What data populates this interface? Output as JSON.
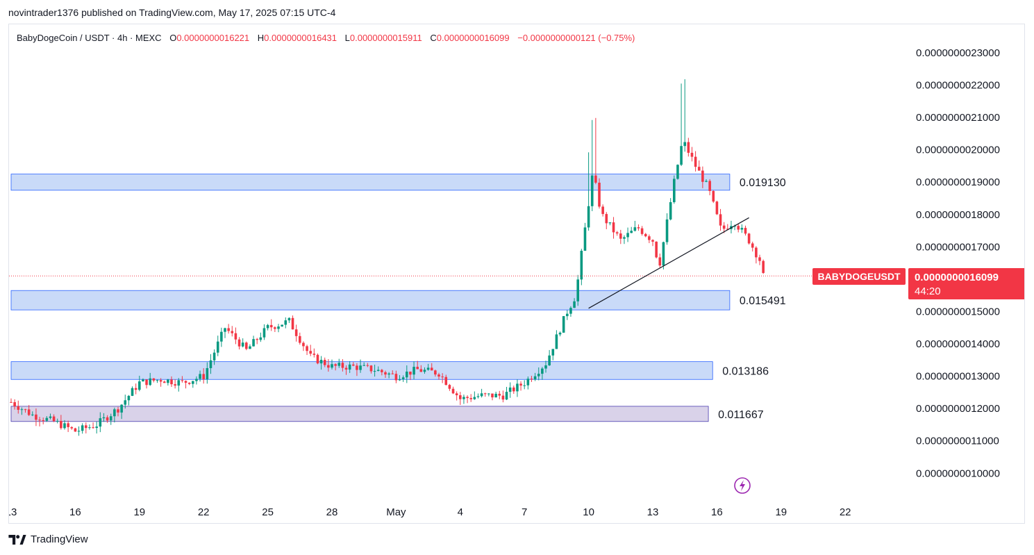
{
  "header": {
    "published_by": "novintrader1376 published on TradingView.com, May 17, 2025 07:15 UTC-4"
  },
  "legend": {
    "symbol": "BabyDogeCoin / USDT · 4h · MEXC",
    "open_label": "O",
    "open": "0.0000000016221",
    "high_label": "H",
    "high": "0.0000000016431",
    "low_label": "L",
    "low": "0.0000000015911",
    "close_label": "C",
    "close": "0.0000000016099",
    "change": "−0.0000000000121 (−0.75%)"
  },
  "price_tag": {
    "symbol": "BABYDOGEUSDT",
    "price": "0.0000000016099",
    "countdown": "44:20"
  },
  "footer": {
    "brand": "TradingView"
  },
  "colors": {
    "up": "#089981",
    "down": "#f23645",
    "zone_blue": "#c9daf8",
    "zone_blue_border": "#2962ff",
    "zone_purple": "#d9d2e9",
    "zone_purple_border": "#4a3cb0"
  },
  "chart_data": {
    "type": "candlestick",
    "y_ticks": [
      "0.0000000023000",
      "0.0000000022000",
      "0.0000000021000",
      "0.0000000020000",
      "0.0000000019000",
      "0.0000000018000",
      "0.0000000017000",
      "0.0000000016000",
      "0.0000000015000",
      "0.0000000014000",
      "0.0000000013000",
      "0.0000000012000",
      "0.0000000011000",
      "0.0000000010000"
    ],
    "y_tick_values": [
      2.3,
      2.2,
      2.1,
      2.0,
      1.9,
      1.8,
      1.7,
      1.6,
      1.5,
      1.4,
      1.3,
      1.2,
      1.1,
      1.0
    ],
    "x_ticks": [
      "13",
      "16",
      "19",
      "22",
      "25",
      "28",
      "May",
      "4",
      "7",
      "10",
      "13",
      "16",
      "19",
      "22"
    ],
    "x_tick_day_index": [
      0,
      3,
      6,
      9,
      12,
      15,
      18,
      21,
      24,
      27,
      30,
      33,
      36,
      39
    ],
    "value_unit": "1e-9 USDT",
    "zones": [
      {
        "label": "0.019130",
        "top": 1.925,
        "bottom": 1.875,
        "start_day": 0,
        "end_day": 33.6,
        "style": "blue"
      },
      {
        "label": "0.015491",
        "top": 1.565,
        "bottom": 1.505,
        "start_day": 0,
        "end_day": 33.6,
        "style": "blue"
      },
      {
        "label": "0.013186",
        "top": 1.345,
        "bottom": 1.29,
        "start_day": 0,
        "end_day": 32.8,
        "style": "blue"
      },
      {
        "label": "0.011667",
        "top": 1.207,
        "bottom": 1.16,
        "start_day": 0,
        "end_day": 32.6,
        "style": "purple"
      }
    ],
    "trendline": {
      "from": [
        27.0,
        1.51
      ],
      "to": [
        34.5,
        1.79
      ]
    },
    "anchors": [
      [
        0,
        1.22
      ],
      [
        1,
        1.18
      ],
      [
        2,
        1.16
      ],
      [
        3,
        1.13
      ],
      [
        4,
        1.15
      ],
      [
        5,
        1.2
      ],
      [
        6,
        1.28
      ],
      [
        7,
        1.29
      ],
      [
        8,
        1.28
      ],
      [
        9,
        1.3
      ],
      [
        10,
        1.45
      ],
      [
        11,
        1.38
      ],
      [
        12,
        1.45
      ],
      [
        13,
        1.47
      ],
      [
        14,
        1.36
      ],
      [
        15,
        1.33
      ],
      [
        16,
        1.33
      ],
      [
        17,
        1.32
      ],
      [
        18,
        1.3
      ],
      [
        19,
        1.32
      ],
      [
        20,
        1.31
      ],
      [
        21,
        1.23
      ],
      [
        22,
        1.24
      ],
      [
        23,
        1.24
      ],
      [
        24,
        1.28
      ],
      [
        25,
        1.34
      ],
      [
        26,
        1.5
      ],
      [
        26.4,
        1.55
      ],
      [
        27.2,
        1.93
      ],
      [
        27.6,
        1.8
      ],
      [
        28.5,
        1.72
      ],
      [
        29.3,
        1.76
      ],
      [
        30,
        1.72
      ],
      [
        30.3,
        1.64
      ],
      [
        31,
        1.9
      ],
      [
        31.4,
        2.03
      ],
      [
        32,
        1.95
      ],
      [
        32.6,
        1.88
      ],
      [
        33.2,
        1.75
      ],
      [
        33.8,
        1.78
      ],
      [
        34.5,
        1.72
      ],
      [
        35,
        1.66
      ],
      [
        35.3,
        1.61
      ]
    ],
    "last_price": 1.6099
  }
}
